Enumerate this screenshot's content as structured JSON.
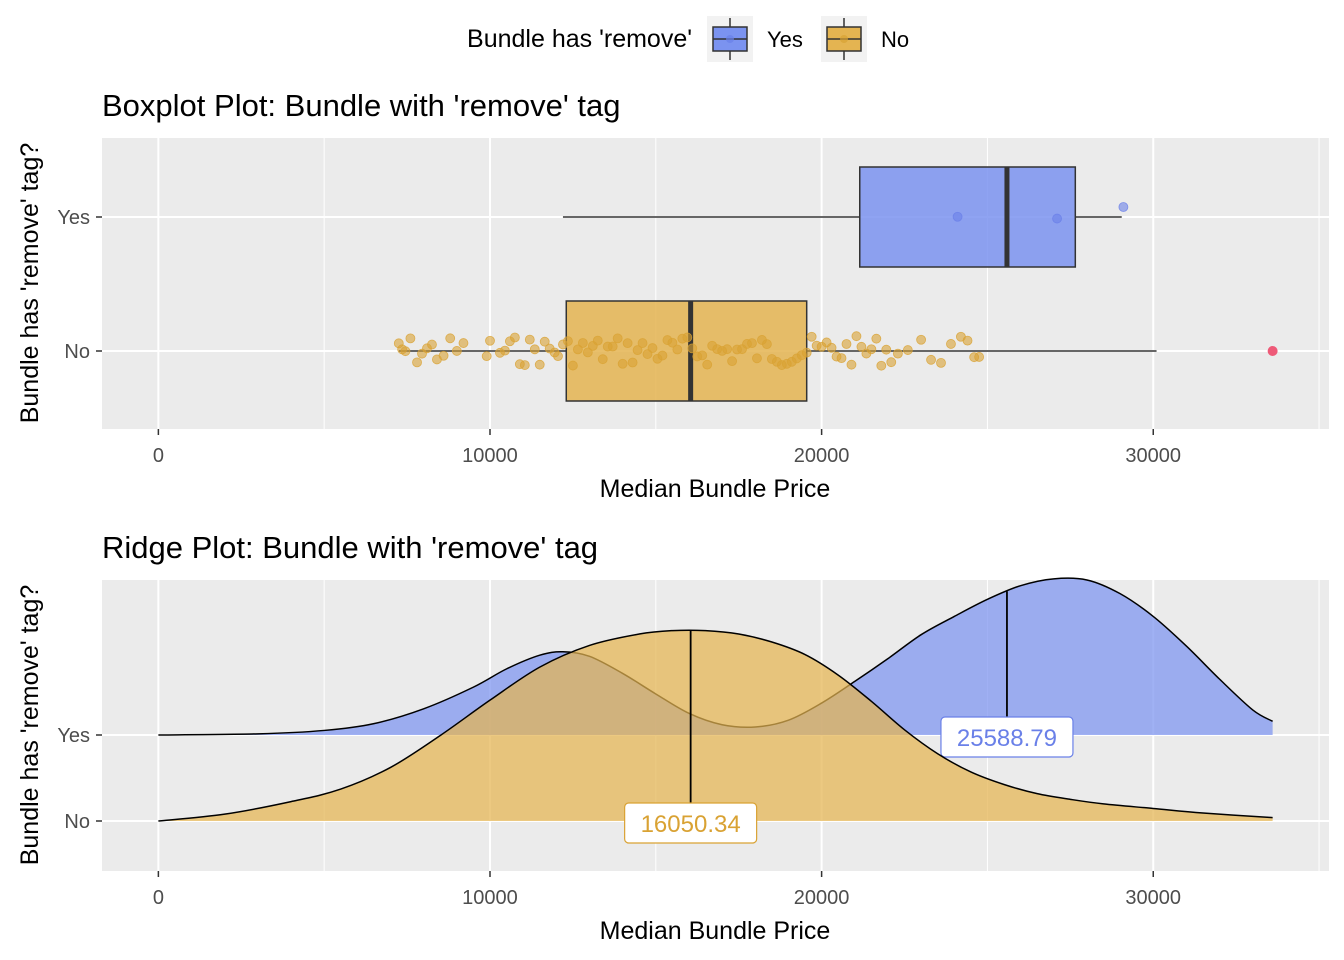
{
  "legend": {
    "title": "Bundle has 'remove'",
    "position": "top",
    "entries": [
      {
        "label": "Yes",
        "color": "#7b93f0"
      },
      {
        "label": "No",
        "color": "#e4b451"
      }
    ]
  },
  "colors": {
    "yes_fill": "#7b93f0",
    "no_fill": "#e4b451",
    "yes_label": "#6a80e8",
    "no_label": "#d9a233",
    "outlier": "#ee5a78",
    "panel_bg": "#ebebeb",
    "grid": "#ffffff",
    "axis_text": "#4d4d4d"
  },
  "chart_data": [
    {
      "type": "boxplot",
      "title": "Boxplot Plot: Bundle with 'remove' tag",
      "xlabel": "Median Bundle Price",
      "ylabel": "Bundle has 'remove' tag?",
      "xlim": [
        -1700,
        35300
      ],
      "xticks": [
        0,
        10000,
        20000,
        30000
      ],
      "xtick_labels": [
        "0",
        "10000",
        "20000",
        "30000"
      ],
      "categories": [
        "Yes",
        "No"
      ],
      "grid": true,
      "boxes": [
        {
          "category": "Yes",
          "whisker_low": 12200,
          "q1": 21150,
          "median": 25588.79,
          "q3": 27650,
          "whisker_high": 29050
        },
        {
          "category": "No",
          "whisker_low": 7250,
          "q1": 12300,
          "median": 16050.34,
          "q3": 19550,
          "whisker_high": 30100
        }
      ],
      "outliers": [
        {
          "category": "No",
          "x": 33600
        }
      ],
      "jitter_points": [
        {
          "category": "Yes",
          "x": [
            24100,
            27100,
            29100
          ]
        },
        {
          "category": "No",
          "x": [
            7250,
            7350,
            7450,
            7600,
            7800,
            7950,
            8100,
            8250,
            8400,
            8600,
            8800,
            9000,
            9200,
            9900,
            10000,
            10300,
            10450,
            10600,
            10750,
            10900,
            11050,
            11200,
            11350,
            11500,
            11650,
            11800,
            11950,
            12050,
            12200,
            12350,
            12500,
            12650,
            12800,
            12950,
            13100,
            13250,
            13400,
            13550,
            13700,
            13850,
            14000,
            14150,
            14300,
            14450,
            14600,
            14750,
            14900,
            15050,
            15200,
            15350,
            15500,
            15650,
            15800,
            15950,
            16100,
            16250,
            16400,
            16550,
            16700,
            16850,
            17000,
            17150,
            17300,
            17450,
            17600,
            17750,
            17900,
            18050,
            18200,
            18350,
            18500,
            18650,
            18800,
            18950,
            19100,
            19250,
            19400,
            19550,
            19700,
            19850,
            20000,
            20150,
            20300,
            20450,
            20600,
            20750,
            20900,
            21050,
            21200,
            21350,
            21500,
            21650,
            21800,
            21950,
            22100,
            22300,
            22600,
            23000,
            23300,
            23600,
            23900,
            24200,
            24400,
            24600,
            24750
          ]
        }
      ]
    },
    {
      "type": "ridgeline",
      "title": "Ridge Plot: Bundle with 'remove' tag",
      "xlabel": "Median Bundle Price",
      "ylabel": "Bundle has 'remove' tag?",
      "xlim": [
        -1700,
        35300
      ],
      "xticks": [
        0,
        10000,
        20000,
        30000
      ],
      "xtick_labels": [
        "0",
        "10000",
        "20000",
        "30000"
      ],
      "categories": [
        "Yes",
        "No"
      ],
      "grid": true,
      "series": [
        {
          "name": "Yes",
          "x": [
            0,
            3000,
            5000,
            6500,
            8000,
            9500,
            10500,
            11500,
            12200,
            13000,
            14000,
            15000,
            16000,
            17000,
            18000,
            19000,
            20000,
            21000,
            22000,
            23000,
            24000,
            25000,
            26000,
            27000,
            28000,
            29000,
            30000,
            31000,
            32000,
            33000,
            33600
          ],
          "height": [
            0.0,
            0.01,
            0.04,
            0.1,
            0.23,
            0.42,
            0.58,
            0.7,
            0.73,
            0.69,
            0.54,
            0.36,
            0.19,
            0.09,
            0.07,
            0.13,
            0.28,
            0.47,
            0.67,
            0.88,
            1.04,
            1.19,
            1.31,
            1.37,
            1.36,
            1.24,
            1.04,
            0.78,
            0.49,
            0.22,
            0.12
          ],
          "median": 25588.79,
          "median_label": "25588.79"
        },
        {
          "name": "No",
          "x": [
            0,
            2000,
            4000,
            5500,
            7000,
            8500,
            10000,
            11500,
            13000,
            14500,
            15500,
            16500,
            17500,
            18500,
            19500,
            20500,
            21500,
            22500,
            23500,
            24500,
            25500,
            26500,
            27500,
            28500,
            30000,
            31500,
            33600
          ],
          "height": [
            0.0,
            0.06,
            0.17,
            0.28,
            0.47,
            0.75,
            1.06,
            1.35,
            1.54,
            1.64,
            1.67,
            1.67,
            1.64,
            1.57,
            1.46,
            1.28,
            1.05,
            0.8,
            0.59,
            0.43,
            0.32,
            0.24,
            0.19,
            0.15,
            0.11,
            0.07,
            0.03
          ],
          "median": 16050.34,
          "median_label": "16050.34"
        }
      ]
    }
  ]
}
